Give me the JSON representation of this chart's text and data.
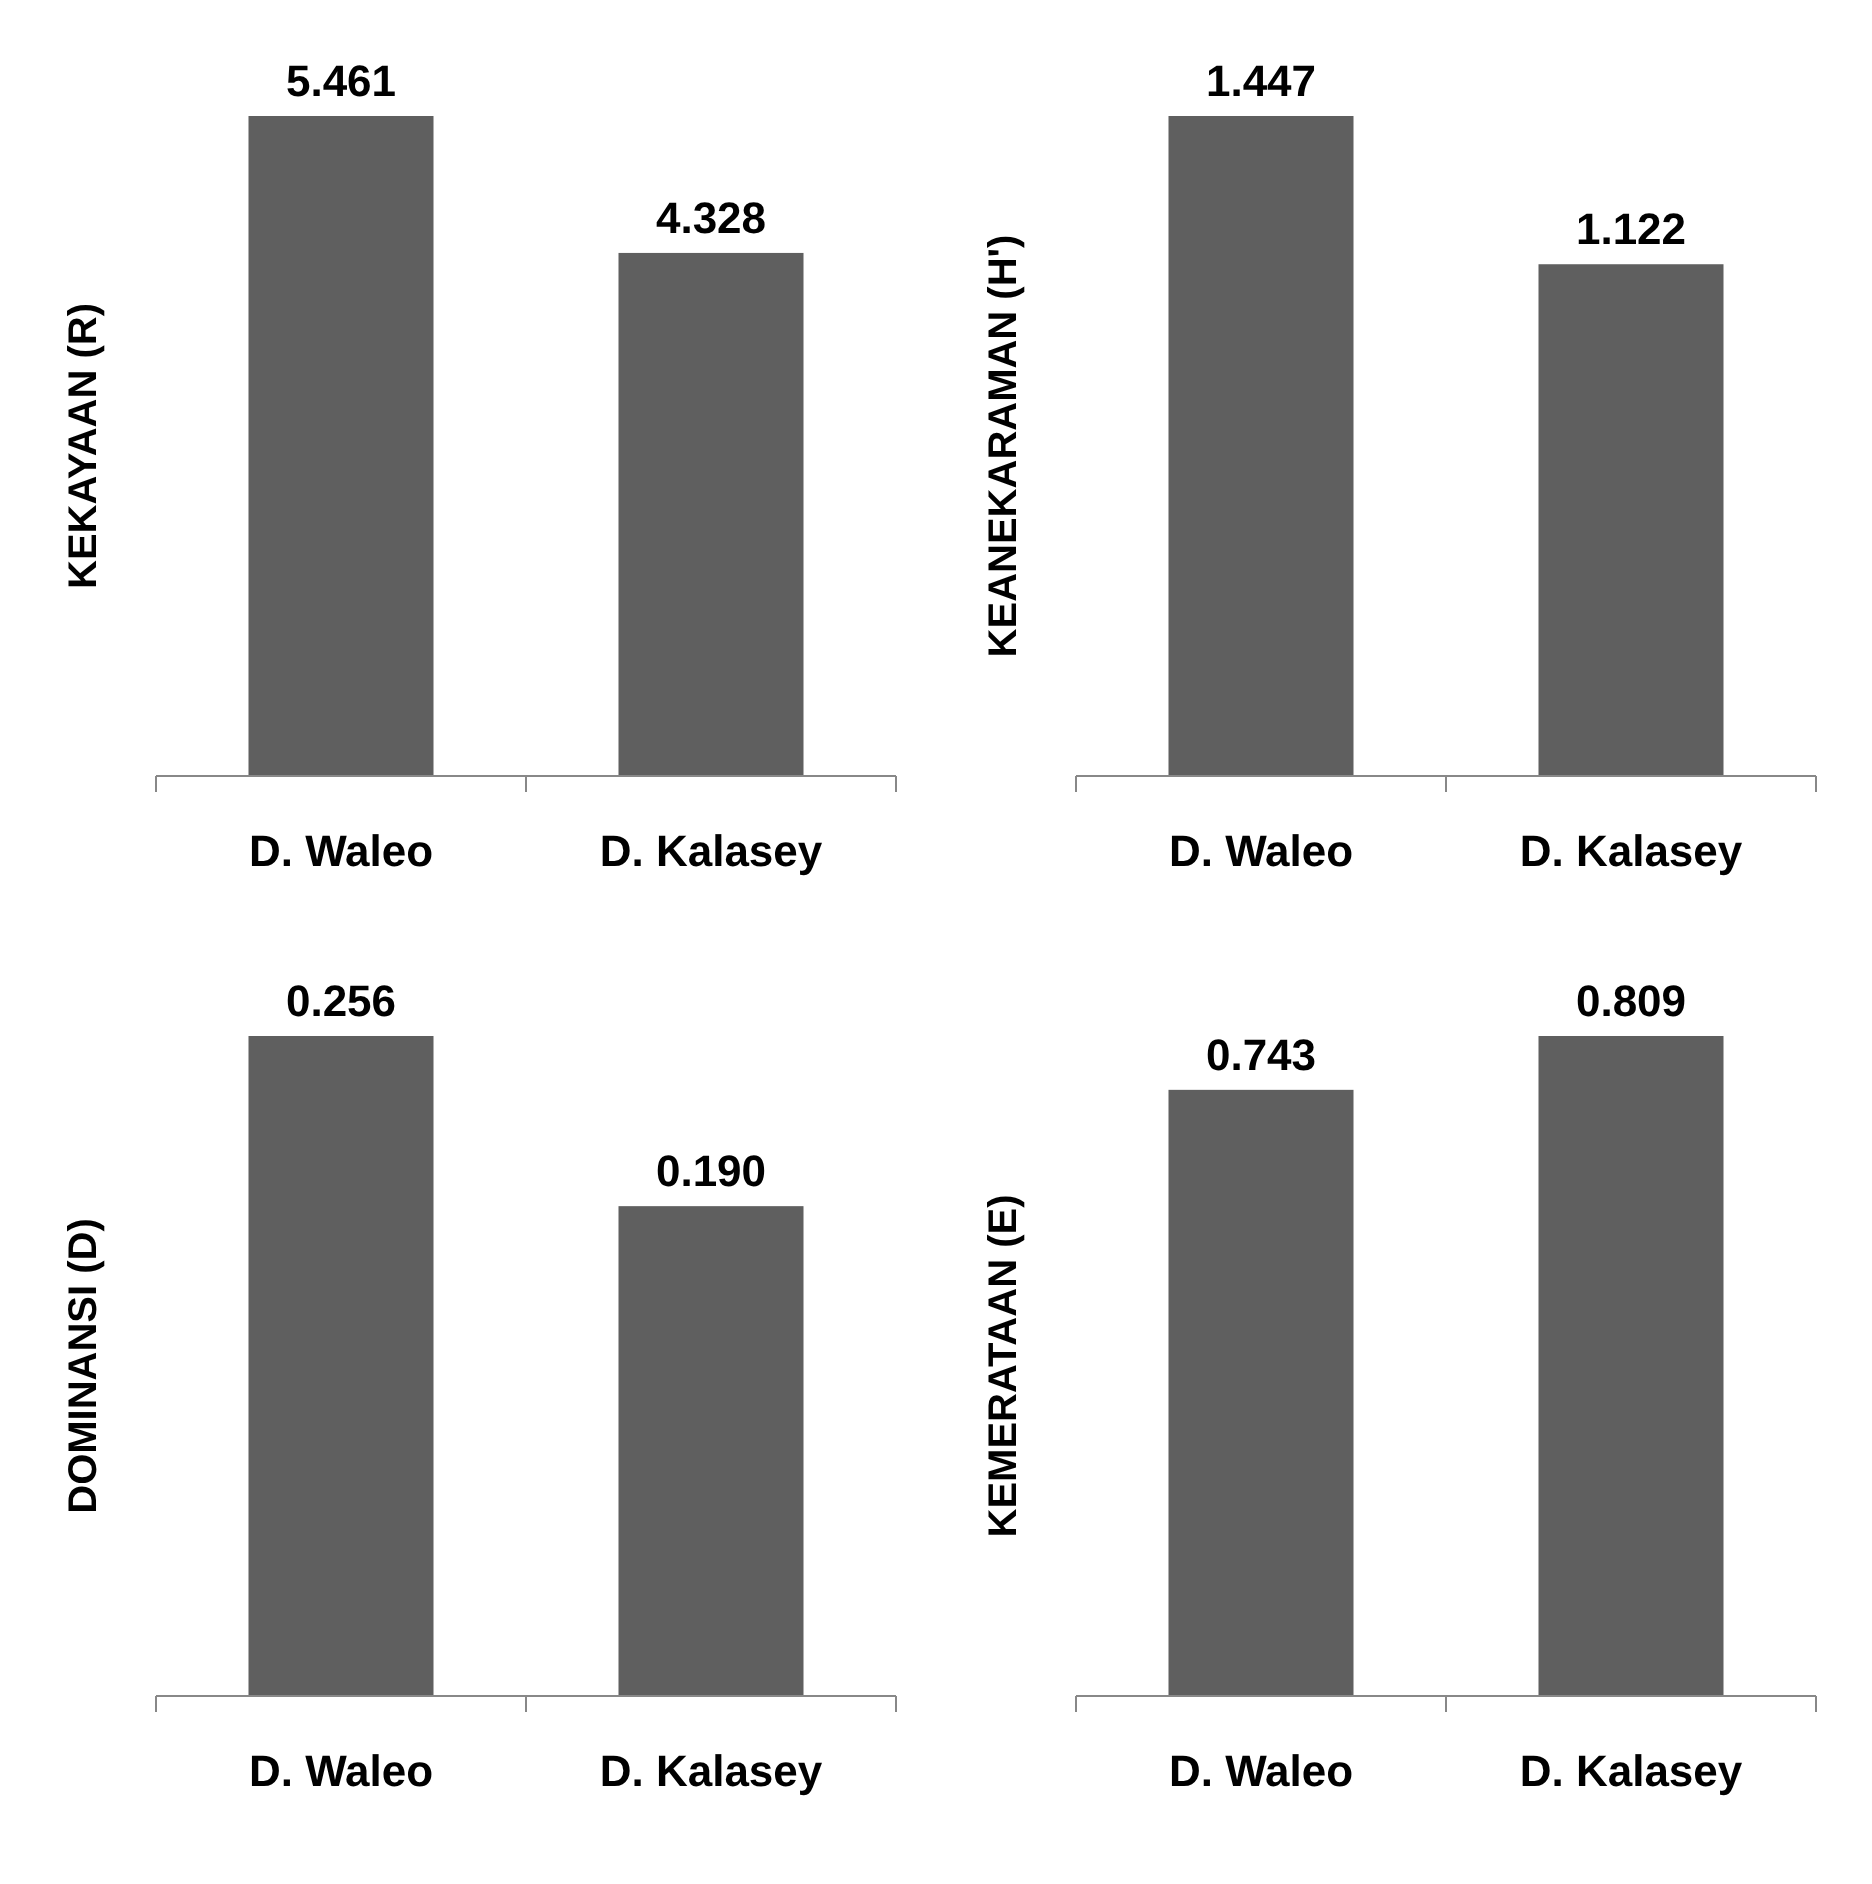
{
  "chart_data": [
    {
      "type": "bar",
      "ylabel": "KEKAYAAN (R)",
      "categories": [
        "D. Waleo",
        "D. Kalasey"
      ],
      "values": [
        5.461,
        4.328
      ],
      "value_labels": [
        "5.461",
        "4.328"
      ],
      "color": "#5f5f5f"
    },
    {
      "type": "bar",
      "ylabel": "KEANEKARAMAN  (H')",
      "categories": [
        "D. Waleo",
        "D. Kalasey"
      ],
      "values": [
        1.447,
        1.122
      ],
      "value_labels": [
        "1.447",
        "1.122"
      ],
      "color": "#5f5f5f"
    },
    {
      "type": "bar",
      "ylabel": "DOMINANSI (D)",
      "categories": [
        "D. Waleo",
        "D. Kalasey"
      ],
      "values": [
        0.256,
        0.19
      ],
      "value_labels": [
        "0.256",
        "0.190"
      ],
      "color": "#5f5f5f"
    },
    {
      "type": "bar",
      "ylabel": "KEMERATAAN (E)",
      "categories": [
        "D. Waleo",
        "D. Kalasey"
      ],
      "values": [
        0.743,
        0.809
      ],
      "value_labels": [
        "0.743",
        "0.809"
      ],
      "color": "#5f5f5f"
    }
  ]
}
